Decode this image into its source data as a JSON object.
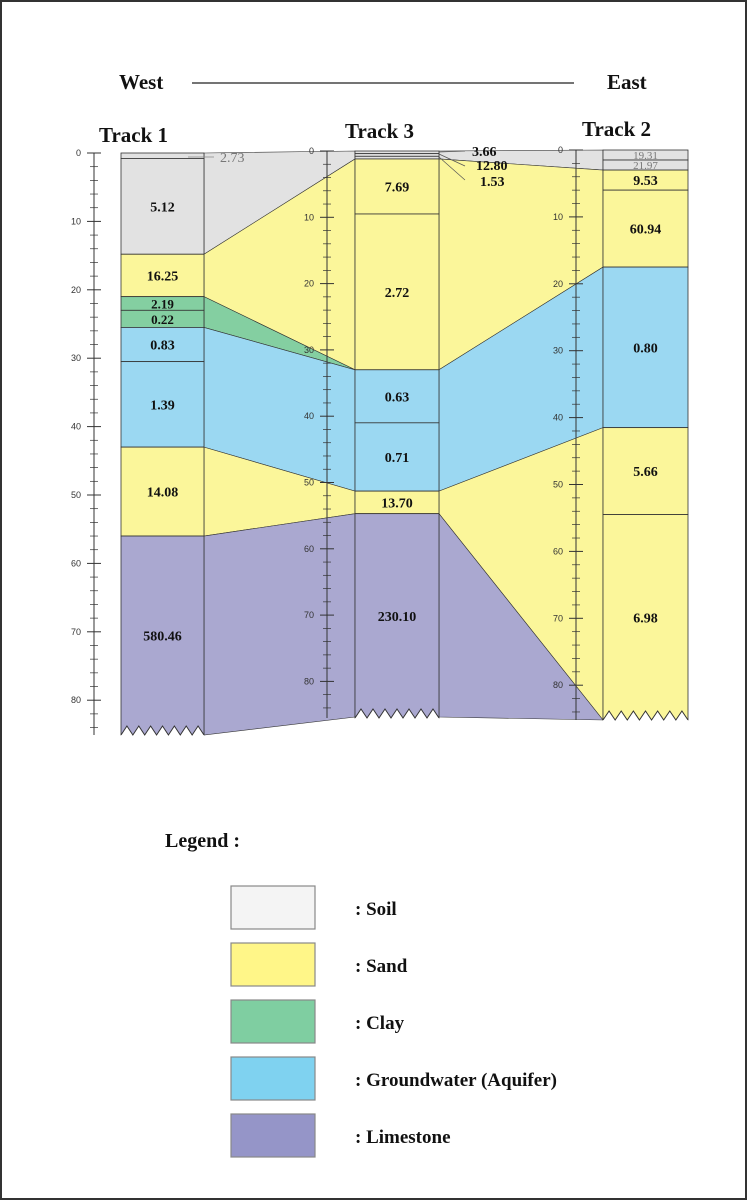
{
  "header": {
    "west": "West",
    "east": "East"
  },
  "colors": {
    "soil": "#e2e2e2",
    "sand": "#fbf69a",
    "clay": "#84cfa1",
    "groundwater": "#9bd8f2",
    "limestone": "#aaa8d0",
    "legend_soil": "#f4f4f4",
    "legend_sand": "#fff688",
    "legend_clay": "#7fcea1",
    "legend_groundwater": "#7fd2f0",
    "legend_limestone": "#9595c8"
  },
  "axis": {
    "ticks": [
      "0",
      "10",
      "20",
      "30",
      "40",
      "50",
      "60",
      "70",
      "80"
    ],
    "min": 0,
    "max": 80
  },
  "tracks": [
    {
      "name": "Track 1",
      "layers": [
        {
          "material": "soil",
          "top": 0,
          "bottom": 0.8,
          "value": "2.73"
        },
        {
          "material": "soil",
          "top": 0.8,
          "bottom": 14.8,
          "value": "5.12"
        },
        {
          "material": "sand",
          "top": 14.8,
          "bottom": 21,
          "value": "16.25"
        },
        {
          "material": "clay",
          "top": 21,
          "bottom": 23,
          "value": "2.19"
        },
        {
          "material": "clay",
          "top": 23,
          "bottom": 25.5,
          "value": "0.22"
        },
        {
          "material": "groundwater",
          "top": 25.5,
          "bottom": 30.5,
          "value": "0.83"
        },
        {
          "material": "groundwater",
          "top": 30.5,
          "bottom": 43,
          "value": "1.39"
        },
        {
          "material": "sand",
          "top": 43,
          "bottom": 56,
          "value": "14.08"
        },
        {
          "material": "limestone",
          "top": 56,
          "bottom": 84,
          "value": "580.46"
        }
      ]
    },
    {
      "name": "Track 3",
      "layers": [
        {
          "material": "soil",
          "top": 0,
          "bottom": 0.4,
          "value": "3.66"
        },
        {
          "material": "soil",
          "top": 0.4,
          "bottom": 0.8,
          "value": "12.80"
        },
        {
          "material": "soil",
          "top": 0.8,
          "bottom": 1.2,
          "value": "1.53"
        },
        {
          "material": "sand",
          "top": 1.2,
          "bottom": 9.5,
          "value": "7.69"
        },
        {
          "material": "sand",
          "top": 9.5,
          "bottom": 33,
          "value": "2.72"
        },
        {
          "material": "groundwater",
          "top": 33,
          "bottom": 41,
          "value": "0.63"
        },
        {
          "material": "groundwater",
          "top": 41,
          "bottom": 51.3,
          "value": "0.71"
        },
        {
          "material": "sand",
          "top": 51.3,
          "bottom": 54.7,
          "value": "13.70"
        },
        {
          "material": "limestone",
          "top": 54.7,
          "bottom": 82,
          "value": "230.10"
        }
      ]
    },
    {
      "name": "Track 2",
      "layers": [
        {
          "material": "soil",
          "top": 0,
          "bottom": 1.5,
          "value": "19.31"
        },
        {
          "material": "soil",
          "top": 1.5,
          "bottom": 3,
          "value": "21.97"
        },
        {
          "material": "sand",
          "top": 3,
          "bottom": 6,
          "value": "9.53"
        },
        {
          "material": "sand",
          "top": 6,
          "bottom": 17.5,
          "value": "60.94"
        },
        {
          "material": "groundwater",
          "top": 17.5,
          "bottom": 41.5,
          "value": "0.80"
        },
        {
          "material": "sand",
          "top": 41.5,
          "bottom": 54.5,
          "value": "5.66"
        },
        {
          "material": "sand",
          "top": 54.5,
          "bottom": 84,
          "value": "6.98"
        }
      ]
    }
  ],
  "legend": {
    "title": "Legend :",
    "items": [
      {
        "material": "soil",
        "label": ": Soil"
      },
      {
        "material": "sand",
        "label": ": Sand"
      },
      {
        "material": "clay",
        "label": ": Clay"
      },
      {
        "material": "groundwater",
        "label": ": Groundwater (Aquifer)"
      },
      {
        "material": "limestone",
        "label": ": Limestone"
      }
    ]
  }
}
